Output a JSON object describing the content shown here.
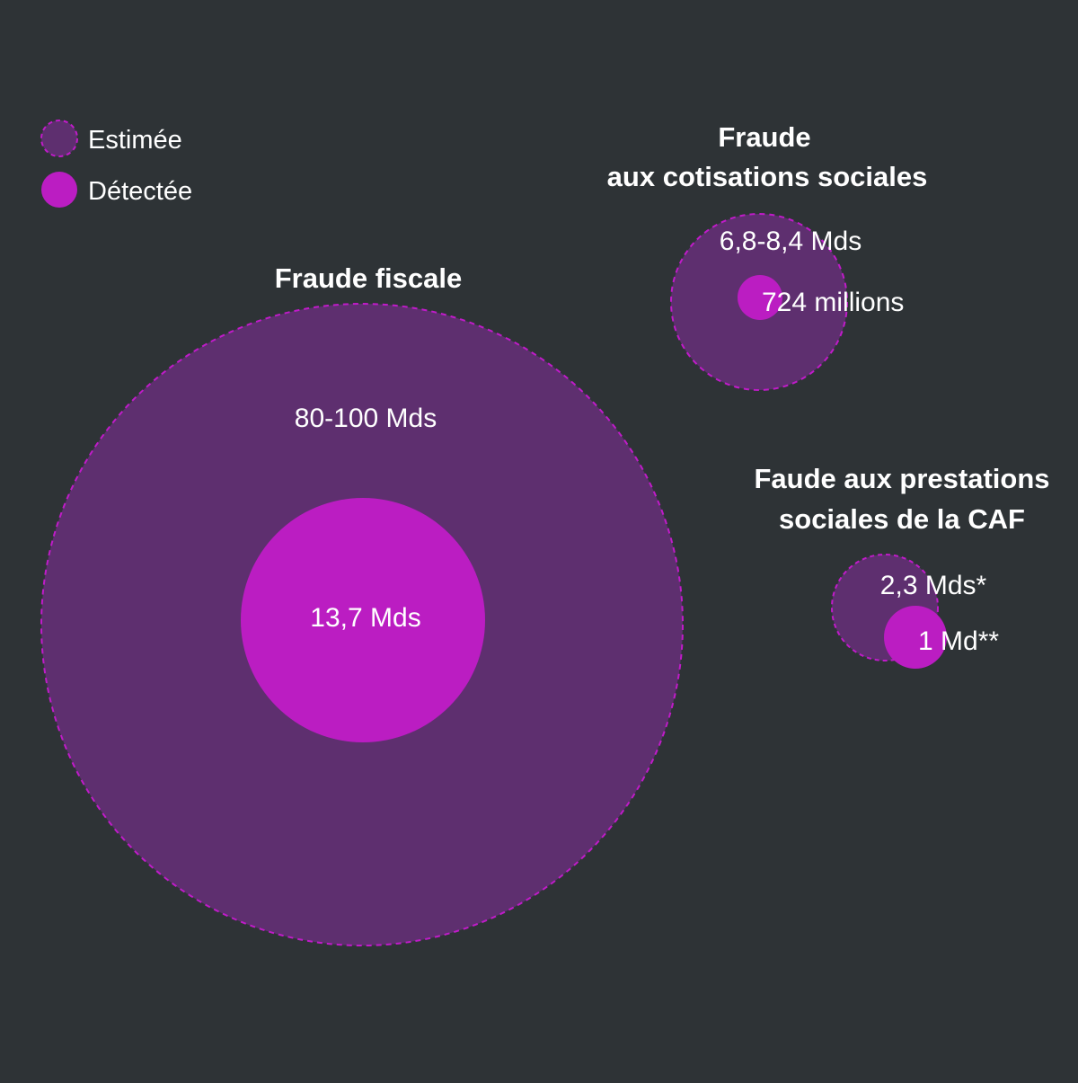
{
  "colors": {
    "background": "#2e3336",
    "estimated": "#5e2f6f",
    "estimated_border": "#c01bc9",
    "detected": "#bb1dc2",
    "text": "#ffffff"
  },
  "legend": {
    "estimated_label": "Estimée",
    "detected_label": "Détectée"
  },
  "chart_data": {
    "type": "bubble",
    "legend_placement": "top-left",
    "groups": [
      {
        "title_lines": [
          "Fraude fiscale"
        ],
        "estimated_label": "80-100 Mds",
        "estimated_value": [
          80,
          100
        ],
        "detected_label": "13,7 Mds",
        "detected_value": 13.7
      },
      {
        "title_lines": [
          "Fraude",
          "aux cotisations sociales"
        ],
        "estimated_label": "6,8-8,4 Mds",
        "estimated_value": [
          6.8,
          8.4
        ],
        "detected_label": "724 millions",
        "detected_value": 0.724
      },
      {
        "title_lines": [
          "Faude aux prestations",
          "sociales de la CAF"
        ],
        "estimated_label": "2,3 Mds*",
        "estimated_value": 2.3,
        "detected_label": "1 Md**",
        "detected_value": 1
      }
    ]
  }
}
